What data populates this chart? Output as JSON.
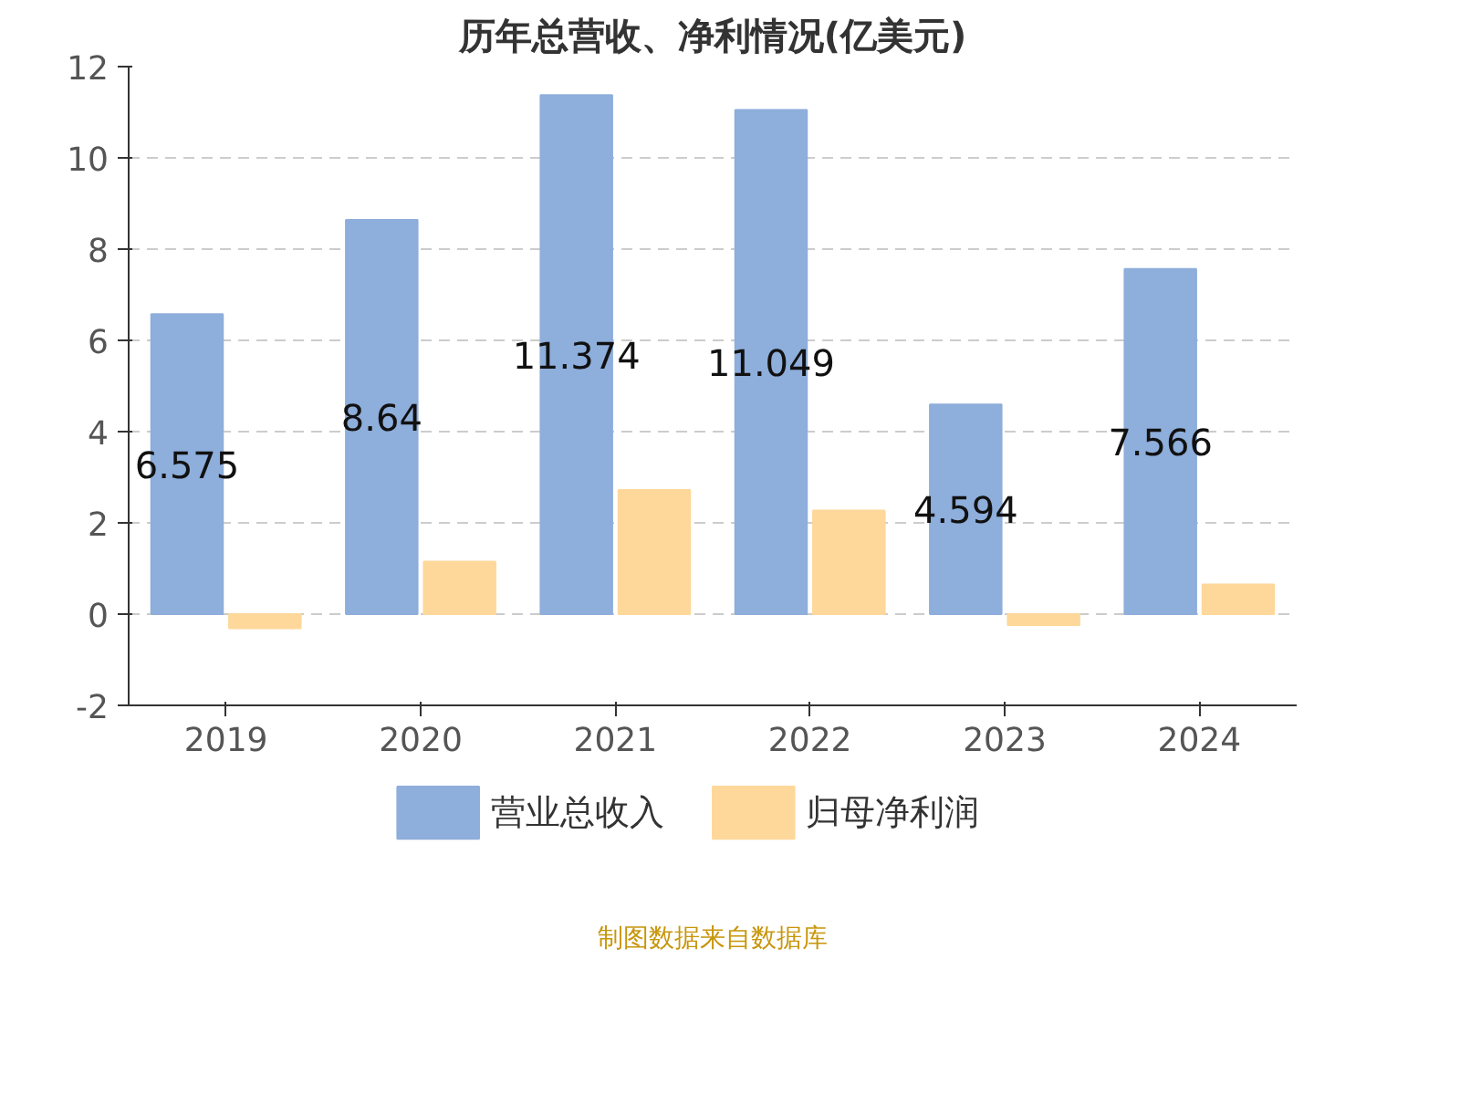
{
  "chart_data": {
    "type": "bar",
    "title": "历年总营收、净利情况(亿美元)",
    "categories": [
      "2019",
      "2020",
      "2021",
      "2022",
      "2023",
      "2024"
    ],
    "series": [
      {
        "name": "营业总收入",
        "color": "#8eaedb",
        "values": [
          6.575,
          8.64,
          11.374,
          11.049,
          4.594,
          7.566
        ],
        "value_labels": [
          "6.575",
          "8.64",
          "11.374",
          "11.049",
          "4.594",
          "7.566"
        ]
      },
      {
        "name": "归母净利润",
        "color": "#fed89a",
        "values": [
          -0.31,
          1.15,
          2.72,
          2.27,
          -0.24,
          0.65
        ]
      }
    ],
    "ylim": [
      -2,
      12
    ],
    "yticks": [
      -2,
      0,
      2,
      4,
      6,
      8,
      10,
      12
    ],
    "grid": "y",
    "legend": "bottom",
    "annotations": [
      "制图数据来自数据库"
    ]
  }
}
